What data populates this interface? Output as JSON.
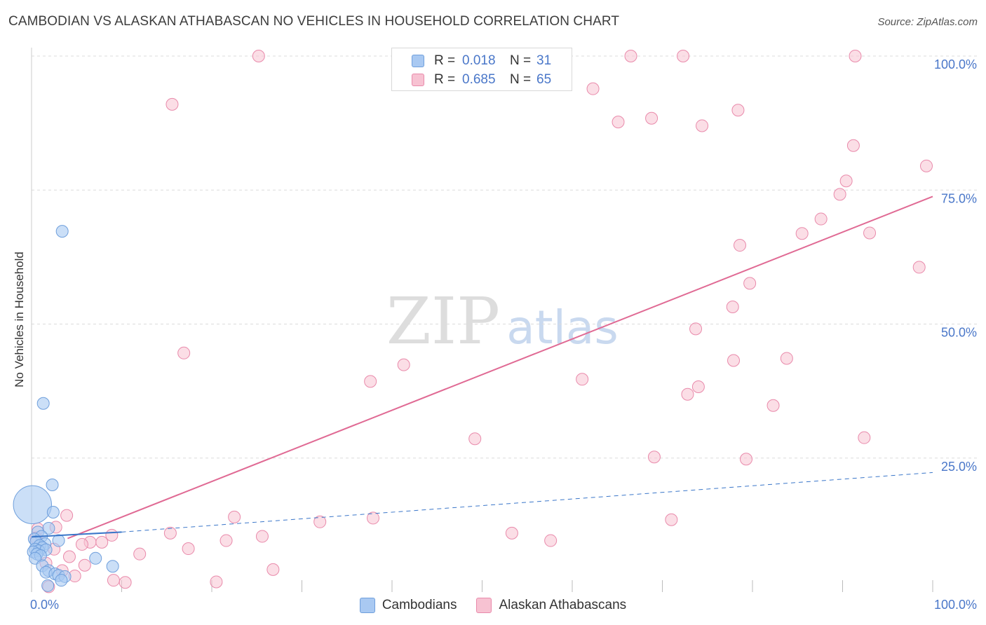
{
  "title": "CAMBODIAN VS ALASKAN ATHABASCAN NO VEHICLES IN HOUSEHOLD CORRELATION CHART",
  "source": "Source: ZipAtlas.com",
  "watermark": {
    "zip": "ZIP",
    "atlas": "atlas"
  },
  "legend": {
    "r_label": "R =",
    "n_label": "N =",
    "rows": [
      {
        "r": "0.018",
        "n": "31"
      },
      {
        "r": "0.685",
        "n": "65"
      }
    ]
  },
  "series_names": [
    "Cambodians",
    "Alaskan Athabascans"
  ],
  "colors": {
    "cambodian_fill": "#a9c9f2",
    "cambodian_stroke": "#6f9fdc",
    "cambodian_line": "#3a76c9",
    "athabascan_fill": "#f7c2d2",
    "athabascan_stroke": "#e98aab",
    "athabascan_line": "#e06a94",
    "tick_text": "#4a77c9",
    "grid": "#dcdcdc"
  },
  "chart_data": {
    "type": "scatter",
    "title": "CAMBODIAN VS ALASKAN ATHABASCAN NO VEHICLES IN HOUSEHOLD CORRELATION CHART",
    "xlabel": "",
    "ylabel": "No Vehicles in Household",
    "xlim": [
      0,
      100
    ],
    "ylim": [
      0,
      100
    ],
    "x_tick_labels": [
      "0.0%",
      "100.0%"
    ],
    "y_tick_labels": [
      {
        "value": 25,
        "label": "25.0%"
      },
      {
        "value": 50,
        "label": "50.0%"
      },
      {
        "value": 75,
        "label": "75.0%"
      },
      {
        "value": 100,
        "label": "100.0%"
      }
    ],
    "series": [
      {
        "name": "Cambodians",
        "r": 0.018,
        "n": 31,
        "points": [
          [
            0.1,
            16.3,
            3.2
          ],
          [
            3.4,
            67.3,
            1
          ],
          [
            1.3,
            35.2,
            1
          ],
          [
            2.3,
            20.0,
            1
          ],
          [
            2.4,
            14.9,
            1
          ],
          [
            1.9,
            11.9,
            1
          ],
          [
            0.7,
            11.2,
            1
          ],
          [
            1.1,
            10.4,
            1
          ],
          [
            0.3,
            9.9,
            1
          ],
          [
            3.0,
            9.6,
            1
          ],
          [
            0.5,
            9.4,
            1
          ],
          [
            1.5,
            9.0,
            1
          ],
          [
            0.9,
            8.7,
            1
          ],
          [
            1.2,
            8.3,
            1
          ],
          [
            0.4,
            8.0,
            1
          ],
          [
            0.8,
            7.7,
            1
          ],
          [
            0.2,
            7.5,
            1
          ],
          [
            1.6,
            7.9,
            1
          ],
          [
            0.6,
            7.1,
            1
          ],
          [
            1.0,
            6.8,
            1
          ],
          [
            0.4,
            6.3,
            1
          ],
          [
            7.1,
            6.3,
            1
          ],
          [
            9.0,
            4.8,
            1
          ],
          [
            1.2,
            4.9,
            1
          ],
          [
            1.9,
            4.0,
            1
          ],
          [
            1.6,
            3.7,
            1
          ],
          [
            2.6,
            3.4,
            1
          ],
          [
            3.0,
            3.1,
            1
          ],
          [
            3.7,
            2.9,
            1
          ],
          [
            3.3,
            2.2,
            1
          ],
          [
            1.8,
            1.2,
            1
          ]
        ],
        "trend_solid": [
          [
            0,
            10.3
          ],
          [
            10,
            11.2
          ]
        ],
        "trend_dashed": [
          [
            10,
            11.2
          ],
          [
            100,
            22.3
          ]
        ]
      },
      {
        "name": "Alaskan Athabascans",
        "r": 0.685,
        "n": 65,
        "points": [
          [
            25.2,
            100.0
          ],
          [
            66.5,
            100.0
          ],
          [
            72.3,
            100.0
          ],
          [
            91.4,
            100.0
          ],
          [
            15.6,
            91.0
          ],
          [
            62.3,
            93.9
          ],
          [
            78.4,
            89.9
          ],
          [
            68.8,
            88.4
          ],
          [
            65.1,
            87.7
          ],
          [
            74.4,
            87.0
          ],
          [
            91.2,
            83.3
          ],
          [
            99.3,
            79.5
          ],
          [
            90.4,
            76.7
          ],
          [
            89.7,
            74.2
          ],
          [
            87.6,
            69.6
          ],
          [
            85.5,
            66.9
          ],
          [
            93.0,
            67.0
          ],
          [
            78.6,
            64.7
          ],
          [
            98.5,
            60.6
          ],
          [
            79.7,
            57.6
          ],
          [
            77.8,
            53.2
          ],
          [
            73.7,
            49.1
          ],
          [
            16.9,
            44.6
          ],
          [
            41.3,
            42.4
          ],
          [
            77.9,
            43.2
          ],
          [
            83.8,
            43.6
          ],
          [
            37.6,
            39.3
          ],
          [
            61.1,
            39.7
          ],
          [
            74.0,
            38.3
          ],
          [
            72.8,
            36.9
          ],
          [
            82.3,
            34.8
          ],
          [
            49.2,
            28.6
          ],
          [
            92.4,
            28.8
          ],
          [
            69.1,
            25.2
          ],
          [
            79.3,
            24.8
          ],
          [
            3.9,
            14.3
          ],
          [
            22.5,
            14.0
          ],
          [
            37.9,
            13.8
          ],
          [
            71.0,
            13.5
          ],
          [
            32.0,
            13.1
          ],
          [
            2.7,
            12.1
          ],
          [
            0.7,
            11.8
          ],
          [
            15.4,
            11.0
          ],
          [
            53.3,
            11.0
          ],
          [
            8.9,
            10.6
          ],
          [
            25.6,
            10.4
          ],
          [
            0.5,
            10.1
          ],
          [
            21.6,
            9.6
          ],
          [
            57.6,
            9.6
          ],
          [
            6.5,
            9.3
          ],
          [
            7.8,
            9.3
          ],
          [
            5.6,
            8.9
          ],
          [
            17.4,
            8.1
          ],
          [
            2.5,
            8.0
          ],
          [
            12.0,
            7.1
          ],
          [
            4.2,
            6.6
          ],
          [
            1.6,
            5.4
          ],
          [
            5.9,
            5.0
          ],
          [
            26.8,
            4.2
          ],
          [
            3.4,
            4.0
          ],
          [
            4.8,
            3.0
          ],
          [
            9.1,
            2.2
          ],
          [
            20.5,
            1.9
          ],
          [
            10.4,
            1.8
          ],
          [
            1.9,
            1.0
          ]
        ],
        "trend": [
          [
            4,
            10.0
          ],
          [
            100,
            73.8
          ]
        ]
      }
    ]
  }
}
